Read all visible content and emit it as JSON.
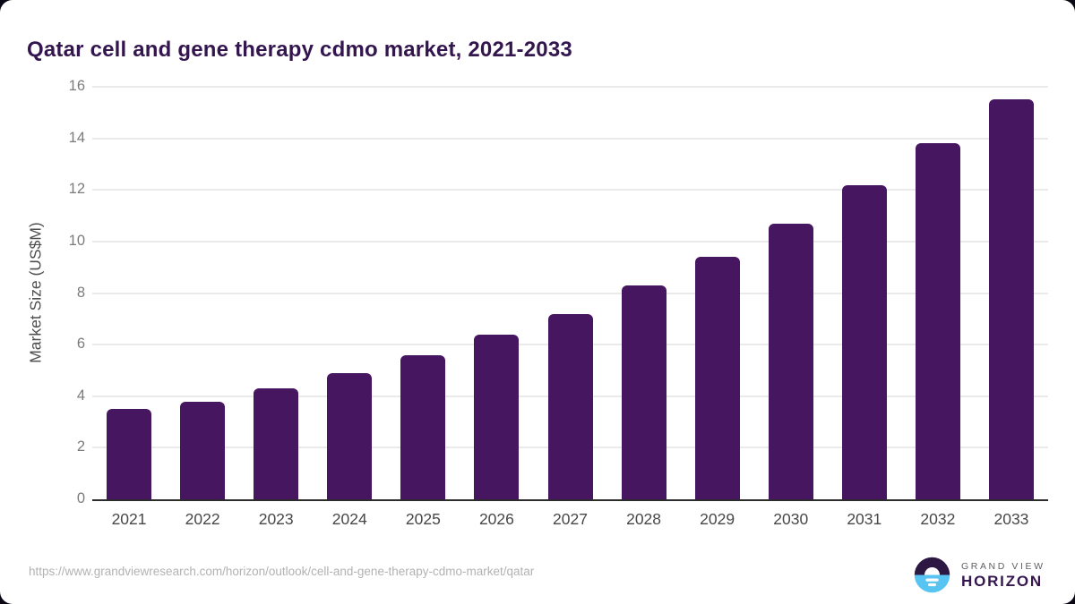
{
  "title": "Qatar cell and gene therapy cdmo market, 2021-2033",
  "chart_data": {
    "type": "bar",
    "title": "Qatar cell and gene therapy cdmo market, 2021-2033",
    "categories": [
      "2021",
      "2022",
      "2023",
      "2024",
      "2025",
      "2026",
      "2027",
      "2028",
      "2029",
      "2030",
      "2031",
      "2032",
      "2033"
    ],
    "values": [
      3.5,
      3.8,
      4.3,
      4.9,
      5.6,
      6.4,
      7.2,
      8.3,
      9.4,
      10.7,
      12.2,
      13.8,
      15.5
    ],
    "xlabel": "",
    "ylabel": "Market Size (US$M)",
    "ylim": [
      0,
      16
    ],
    "yticks": [
      0,
      2,
      4,
      6,
      8,
      10,
      12,
      14,
      16
    ],
    "grid": "horizontal",
    "legend": "none",
    "bar_color": "#471661"
  },
  "colors": {
    "title": "#34164e",
    "bar": "#471661",
    "gridline": "#eaeaea",
    "axis_line": "#2c2c2c",
    "logo_purple": "#2d1843",
    "logo_blue": "#58c4f1"
  },
  "footer": {
    "source_url": "https://www.grandviewresearch.com/horizon/outlook/cell-and-gene-therapy-cdmo-market/qatar",
    "logo": {
      "brand_top": "GRAND VIEW",
      "brand_bottom": "HORIZON"
    }
  }
}
